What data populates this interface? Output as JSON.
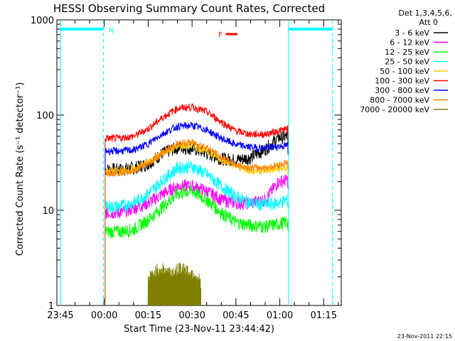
{
  "chart_data": {
    "type": "line",
    "title": "HESSI Observing Summary Count Rates, Corrected",
    "xlabel": "Start Time (23-Nov-11 23:44:42)",
    "ylabel": "Corrected Count Rate (s⁻¹ detector⁻¹)",
    "yscale": "log",
    "ylim": [
      1,
      1000
    ],
    "xlim_minutes": [
      -1.2,
      96
    ],
    "x_tick_labels": [
      "23:45",
      "00:00",
      "00:15",
      "00:30",
      "00:45",
      "01:00",
      "01:15"
    ],
    "y_tick_labels": [
      "1",
      "10",
      "100",
      "1000"
    ],
    "legend_title": "Det 1,3,4,5,6, Att 0",
    "legend_placement": "right",
    "grid": false,
    "series": [
      {
        "name": "3 - 6 keV",
        "color": "#000000",
        "t": [
          15.3,
          20,
          25,
          30,
          35,
          40,
          45,
          50,
          55,
          60,
          65,
          70,
          74.5,
          77.8
        ],
        "values": [
          27,
          27,
          28,
          31,
          40,
          46,
          45,
          40,
          35,
          34,
          36,
          44,
          58,
          60
        ]
      },
      {
        "name": "6 - 12 keV",
        "color": "#ff00ff",
        "t": [
          15.3,
          20,
          25,
          30,
          35,
          40,
          45,
          50,
          55,
          60,
          65,
          70,
          74.5,
          77.8
        ],
        "values": [
          9.5,
          9.5,
          10.5,
          12,
          15,
          18,
          18,
          16,
          13,
          12,
          12,
          13,
          20,
          21
        ]
      },
      {
        "name": "12 - 25 keV",
        "color": "#00ff00",
        "t": [
          15.3,
          20,
          25,
          30,
          35,
          40,
          45,
          50,
          55,
          60,
          65,
          70,
          74.5,
          77.8
        ],
        "values": [
          6.0,
          6.0,
          6.3,
          8,
          11,
          15,
          16,
          13,
          9.5,
          7.5,
          7.0,
          6.8,
          7.2,
          7.6
        ]
      },
      {
        "name": "25 - 50 keV",
        "color": "#00ffff",
        "t": [
          15.3,
          20,
          25,
          30,
          35,
          40,
          45,
          50,
          55,
          60,
          65,
          70,
          74.5,
          77.8
        ],
        "values": [
          11,
          11,
          12,
          15,
          21,
          28,
          29,
          24,
          18,
          14,
          12,
          11.5,
          12,
          13
        ]
      },
      {
        "name": "50 - 100 keV",
        "color": "#ffcc00",
        "t": [
          15.3,
          20,
          25,
          30,
          35,
          40,
          45,
          50,
          55,
          60,
          65,
          70,
          74.5,
          77.8
        ],
        "values": [
          26,
          26,
          27,
          32,
          40,
          47,
          48,
          42,
          34,
          29,
          26,
          26,
          27,
          28
        ]
      },
      {
        "name": "100 - 300 keV",
        "color": "#ff0000",
        "t": [
          15.3,
          20,
          25,
          30,
          35,
          40,
          45,
          50,
          55,
          60,
          65,
          70,
          74.5,
          77.8
        ],
        "values": [
          57,
          57,
          60,
          72,
          95,
          118,
          122,
          108,
          85,
          68,
          63,
          63,
          68,
          72
        ]
      },
      {
        "name": "300 - 800 keV",
        "color": "#0000ff",
        "t": [
          15.3,
          20,
          25,
          30,
          35,
          40,
          45,
          50,
          55,
          60,
          65,
          70,
          74.5,
          77.8
        ],
        "values": [
          42,
          42,
          43,
          50,
          64,
          76,
          78,
          70,
          57,
          49,
          46,
          45,
          47,
          48
        ]
      },
      {
        "name": "800 - 7000 keV",
        "color": "#ff8800",
        "t": [
          15.3,
          20,
          25,
          30,
          35,
          40,
          45,
          50,
          55,
          60,
          65,
          70,
          74.5,
          77.8
        ],
        "values": [
          25,
          25,
          26,
          31,
          40,
          50,
          52,
          46,
          36,
          30,
          28,
          28,
          30,
          32
        ]
      },
      {
        "name": "7000 - 20000 keV",
        "color": "#808000",
        "t": [
          30,
          32,
          34,
          36,
          38,
          40,
          42,
          44,
          46,
          48
        ],
        "values": [
          1.9,
          2.3,
          2.5,
          2.4,
          2.3,
          2.4,
          2.6,
          2.3,
          2.2,
          1.8
        ]
      }
    ],
    "annotations": [
      {
        "text": "N",
        "color": "#00ffff"
      },
      {
        "text": "F",
        "color": "#ff0000"
      }
    ],
    "footer_date": "23-Nov-2011 22:15"
  }
}
